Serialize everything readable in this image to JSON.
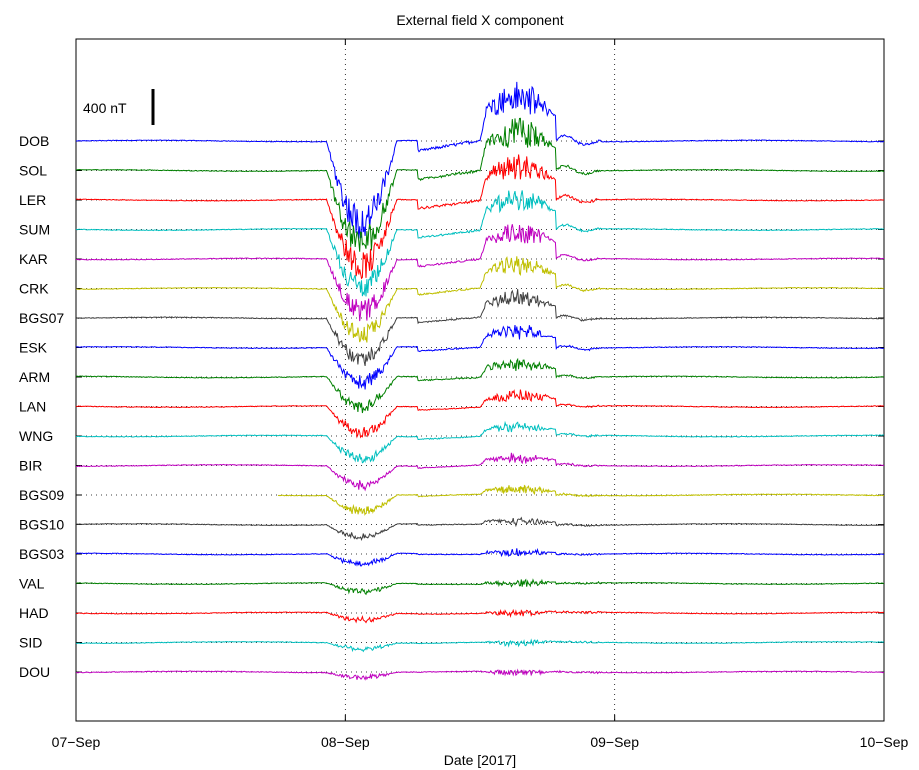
{
  "chart_data": {
    "type": "line",
    "title": "External field X component",
    "xlabel": "Date [2017]",
    "ylabel": "",
    "x_ticks": [
      "07−Sep",
      "08−Sep",
      "09−Sep",
      "10−Sep"
    ],
    "xlim_days": [
      0,
      3
    ],
    "scale_bar": {
      "label": "400 nT",
      "value_nT": 400
    },
    "grid": "dotted",
    "vertical_gridlines_at_days": [
      1,
      2
    ],
    "stations": [
      {
        "name": "DOB",
        "color": "#0000ff"
      },
      {
        "name": "SOL",
        "color": "#008000"
      },
      {
        "name": "LER",
        "color": "#ff0000"
      },
      {
        "name": "SUM",
        "color": "#00bfbf"
      },
      {
        "name": "KAR",
        "color": "#bf00bf"
      },
      {
        "name": "CRK",
        "color": "#bfbf00"
      },
      {
        "name": "BGS07",
        "color": "#404040"
      },
      {
        "name": "ESK",
        "color": "#0000ff"
      },
      {
        "name": "ARM",
        "color": "#008000"
      },
      {
        "name": "LAN",
        "color": "#ff0000"
      },
      {
        "name": "WNG",
        "color": "#00bfbf"
      },
      {
        "name": "BIR",
        "color": "#bf00bf"
      },
      {
        "name": "BGS09",
        "color": "#bfbf00"
      },
      {
        "name": "BGS10",
        "color": "#404040"
      },
      {
        "name": "BGS03",
        "color": "#0000ff"
      },
      {
        "name": "VAL",
        "color": "#008000"
      },
      {
        "name": "HAD",
        "color": "#ff0000"
      },
      {
        "name": "SID",
        "color": "#00bfbf"
      },
      {
        "name": "DOU",
        "color": "#bf00bf"
      }
    ],
    "storm_sudden_commencement_day": 0.96,
    "main_phase_days": [
      0.98,
      1.12
    ],
    "second_disturbance_days": [
      1.5,
      1.78
    ],
    "recovery_day": 1.9
  }
}
